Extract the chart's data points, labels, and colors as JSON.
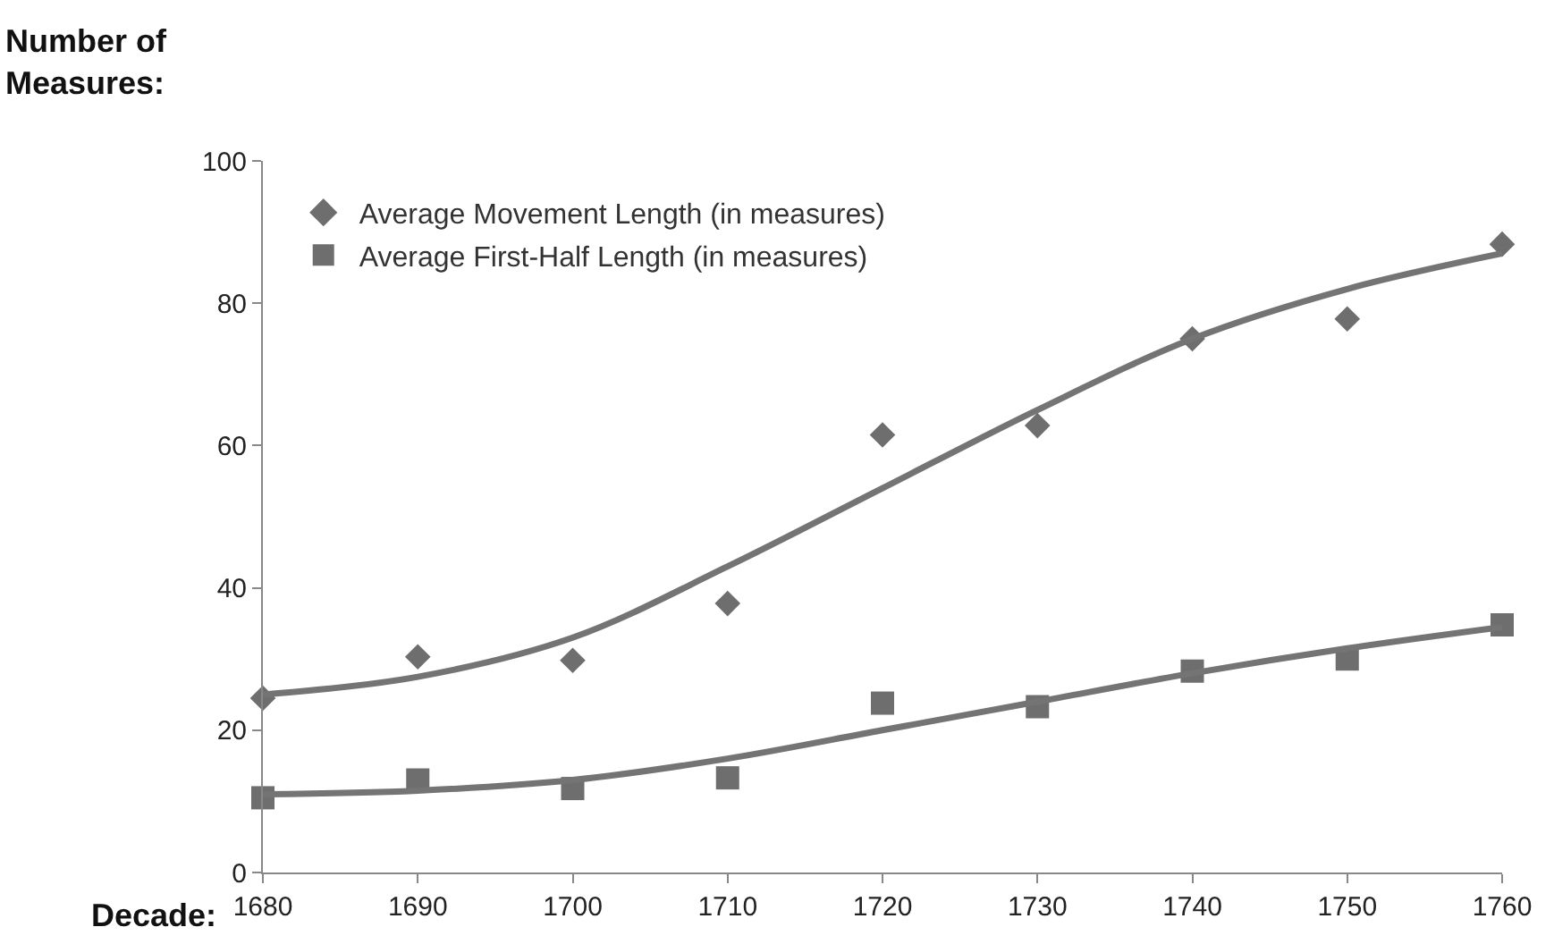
{
  "chart_data": {
    "type": "scatter",
    "ylabel": "Number of Measures:",
    "xlabel": "Decade:",
    "x": [
      1680,
      1690,
      1700,
      1710,
      1720,
      1730,
      1740,
      1750,
      1760
    ],
    "series": [
      {
        "name": "Average Movement Length (in measures)",
        "color": "#6e6e6e",
        "marker": "diamond",
        "values": [
          24.5,
          30.3,
          29.8,
          37.8,
          61.5,
          62.8,
          75,
          77.8,
          88.3
        ]
      },
      {
        "name": "Average First-Half Length (in measures)",
        "color": "#6e6e6e",
        "marker": "square",
        "values": [
          10.5,
          13,
          11.8,
          13.3,
          23.8,
          23.3,
          28.3,
          30,
          34.8
        ]
      },
      {
        "type": "line",
        "color": "#747474",
        "marker": "none",
        "values": [
          25,
          27.5,
          33,
          43,
          54,
          65,
          75,
          82,
          87
        ]
      },
      {
        "type": "line",
        "color": "#747474",
        "marker": "none",
        "values": [
          11,
          11.5,
          13,
          16,
          20,
          24,
          28,
          31.5,
          34.5
        ]
      }
    ],
    "xlim": [
      1680,
      1760
    ],
    "xticks": [
      1680,
      1690,
      1700,
      1710,
      1720,
      1730,
      1740,
      1750,
      1760
    ],
    "ylim": [
      0,
      100
    ],
    "yticks": [
      0,
      20,
      40,
      60,
      80,
      100
    ],
    "legend": "top left"
  }
}
